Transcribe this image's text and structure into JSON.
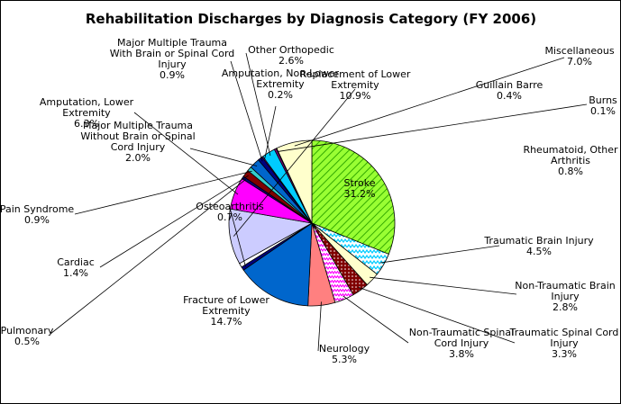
{
  "chart_data": {
    "type": "pie",
    "title": "Rehabilitation Discharges by Diagnosis Category (FY 2006)",
    "slices": [
      {
        "label": [
          "Stroke"
        ],
        "value": "31.2%",
        "v": 31.2,
        "color": "#99ff33",
        "pattern": "diag"
      },
      {
        "label": [
          "Traumatic Brain Injury"
        ],
        "value": "4.5%",
        "v": 4.5,
        "color": "#00ccff",
        "pattern": "wave"
      },
      {
        "label": [
          "Non-Traumatic Brain",
          "Injury"
        ],
        "value": "2.8%",
        "v": 2.8,
        "color": "#ffffcc"
      },
      {
        "label": [
          "Traumatic Spinal Cord",
          "Injury"
        ],
        "value": "3.3%",
        "v": 3.3,
        "color": "#800000",
        "pattern": "dots"
      },
      {
        "label": [
          "Non-Traumatic Spinal",
          "Cord Injury"
        ],
        "value": "3.8%",
        "v": 3.8,
        "color": "#ff00ff",
        "pattern": "zigzag"
      },
      {
        "label": [
          "Neurology"
        ],
        "value": "5.3%",
        "v": 5.3,
        "color": "#ff8080"
      },
      {
        "label": [
          "Fracture of Lower",
          "Extremity"
        ],
        "value": "14.7%",
        "v": 14.7,
        "color": "#0066cc"
      },
      {
        "label": [
          "Osteoarthritis"
        ],
        "value": "0.7%",
        "v": 0.7,
        "color": "#000080"
      },
      {
        "label": [
          "Rheumatoid, Other",
          "Arthritis"
        ],
        "value": "0.8%",
        "v": 0.8,
        "color": "#ffffff"
      },
      {
        "label": [
          "Replacement of Lower",
          "Extremity"
        ],
        "value": "10.9%",
        "v": 10.9,
        "color": "#ccccff"
      },
      {
        "label": [
          "Amputation, Lower",
          "Extremity"
        ],
        "value": "6.3%",
        "v": 6.3,
        "color": "#ff00ff"
      },
      {
        "label": [
          "Pulmonary"
        ],
        "value": "0.5%",
        "v": 0.5,
        "color": "#000080"
      },
      {
        "label": [
          "Cardiac"
        ],
        "value": "1.4%",
        "v": 1.4,
        "color": "#800000"
      },
      {
        "label": [
          "Pain Syndrome"
        ],
        "value": "0.9%",
        "v": 0.9,
        "color": "#33cccc"
      },
      {
        "label": [
          "Major Multiple Trauma",
          "Without Brain or Spinal",
          "Cord Injury"
        ],
        "value": "2.0%",
        "v": 2.0,
        "color": "#0066cc"
      },
      {
        "label": [
          "Major Multiple Trauma",
          "With Brain or Spinal Cord",
          "Injury"
        ],
        "value": "0.9%",
        "v": 0.9,
        "color": "#000080"
      },
      {
        "label": [
          "Amputation, Non-Lower",
          "Extremity"
        ],
        "value": "0.2%",
        "v": 0.2,
        "color": "#ff00ff"
      },
      {
        "label": [
          "Other Orthopedic"
        ],
        "value": "2.6%",
        "v": 2.6,
        "color": "#00ccff"
      },
      {
        "label": [
          "Guillain Barre"
        ],
        "value": "0.4%",
        "v": 0.4,
        "color": "#800080"
      },
      {
        "label": [
          "Burns"
        ],
        "value": "0.1%",
        "v": 0.1,
        "color": "#0000ff"
      },
      {
        "label": [
          "Miscellaneous"
        ],
        "value": "7.0%",
        "v": 7.0,
        "color": "#ffffcc"
      }
    ]
  }
}
